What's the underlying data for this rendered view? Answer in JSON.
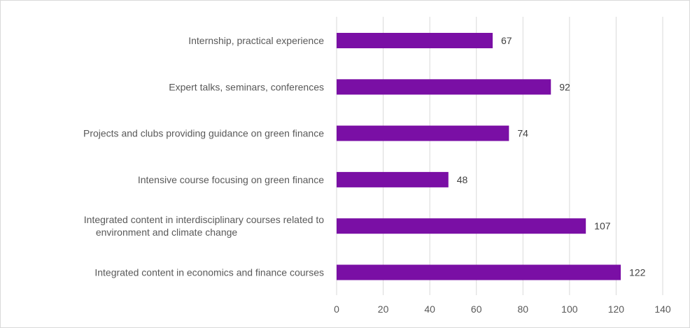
{
  "chart_data": {
    "type": "bar",
    "orientation": "horizontal",
    "categories": [
      "Internship, practical experience",
      "Expert talks, seminars, conferences",
      "Projects and clubs providing guidance on green finance",
      "Intensive course focusing on green finance",
      "Integrated content in interdisciplinary courses related to environment and climate change",
      "Integrated content in economics and finance courses"
    ],
    "category_lines": [
      [
        "Internship, practical experience"
      ],
      [
        "Expert talks, seminars, conferences"
      ],
      [
        "Projects and clubs providing guidance on green finance"
      ],
      [
        "Intensive course focusing on green finance"
      ],
      [
        "Integrated content in interdisciplinary courses related to",
        "environment and climate change"
      ],
      [
        "Integrated content in economics and finance courses"
      ]
    ],
    "values": [
      67,
      92,
      74,
      48,
      107,
      122
    ],
    "data_labels": [
      "67",
      "92",
      "74",
      "48",
      "107",
      "122"
    ],
    "xlim": [
      0,
      140
    ],
    "xticks": [
      0,
      20,
      40,
      60,
      80,
      100,
      120,
      140
    ],
    "xtick_labels": [
      "0",
      "20",
      "40",
      "60",
      "80",
      "100",
      "120",
      "140"
    ],
    "grid": "vertical",
    "legend": "none",
    "bar_color": "#7a0fa5",
    "grid_color": "#d9d9d9"
  }
}
